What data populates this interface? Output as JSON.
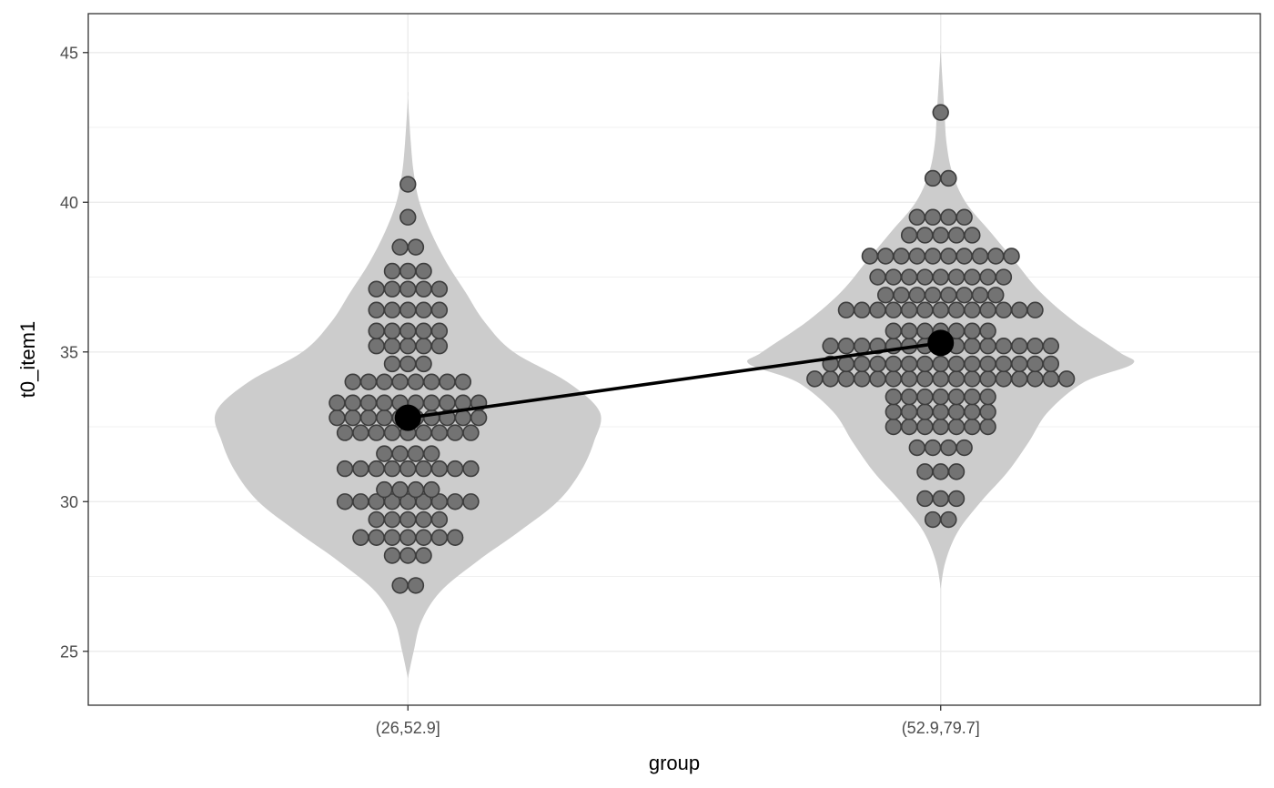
{
  "chart_data": {
    "type": "violin-dotplot",
    "xlabel": "group",
    "ylabel": "t0_item1",
    "categories": [
      "(26,52.9]",
      "(52.9,79.7]"
    ],
    "y_ticks": [
      25,
      30,
      35,
      40,
      45
    ],
    "y_tick_labels": [
      "25",
      "30",
      "35",
      "40",
      "45"
    ],
    "ylim": [
      23.2,
      46.3
    ],
    "grid": true,
    "legend": "none",
    "colors": {
      "violin_fill": "#cccccc",
      "dot_fill": "#737373",
      "dot_stroke": "#3d3d3d",
      "mean_color": "#000000",
      "grid": "#ebebeb",
      "panel_border": "#333333"
    },
    "violins": [
      {
        "category": "(26,52.9]",
        "density": [
          [
            24.1,
            0.0
          ],
          [
            25.0,
            0.03
          ],
          [
            26.0,
            0.07
          ],
          [
            27.0,
            0.17
          ],
          [
            28.0,
            0.36
          ],
          [
            29.0,
            0.58
          ],
          [
            30.0,
            0.78
          ],
          [
            31.0,
            0.9
          ],
          [
            32.0,
            0.97
          ],
          [
            33.0,
            1.0
          ],
          [
            34.0,
            0.83
          ],
          [
            35.0,
            0.55
          ],
          [
            36.0,
            0.4
          ],
          [
            37.0,
            0.3
          ],
          [
            38.0,
            0.2
          ],
          [
            39.0,
            0.12
          ],
          [
            40.0,
            0.06
          ],
          [
            41.0,
            0.03
          ],
          [
            42.0,
            0.015
          ],
          [
            43.5,
            0.0
          ]
        ]
      },
      {
        "category": "(52.9,79.7]",
        "density": [
          [
            27.1,
            0.0
          ],
          [
            28.0,
            0.025
          ],
          [
            29.0,
            0.09
          ],
          [
            30.0,
            0.21
          ],
          [
            31.0,
            0.35
          ],
          [
            32.0,
            0.46
          ],
          [
            33.0,
            0.56
          ],
          [
            34.0,
            0.75
          ],
          [
            34.6,
            1.0
          ],
          [
            35.0,
            0.93
          ],
          [
            36.0,
            0.7
          ],
          [
            37.0,
            0.52
          ],
          [
            38.0,
            0.39
          ],
          [
            39.0,
            0.26
          ],
          [
            40.0,
            0.13
          ],
          [
            41.0,
            0.06
          ],
          [
            42.0,
            0.03
          ],
          [
            43.0,
            0.02
          ],
          [
            44.0,
            0.01
          ],
          [
            45.1,
            0.0
          ]
        ]
      }
    ],
    "dot_rows": [
      {
        "category": "(26,52.9]",
        "rows": [
          {
            "y": 27.2,
            "count": 2
          },
          {
            "y": 28.2,
            "count": 3
          },
          {
            "y": 28.8,
            "count": 7
          },
          {
            "y": 29.4,
            "count": 5
          },
          {
            "y": 30.0,
            "count": 9
          },
          {
            "y": 30.4,
            "count": 4
          },
          {
            "y": 31.1,
            "count": 9
          },
          {
            "y": 31.6,
            "count": 4
          },
          {
            "y": 32.3,
            "count": 9
          },
          {
            "y": 32.8,
            "count": 10
          },
          {
            "y": 33.3,
            "count": 10
          },
          {
            "y": 34.0,
            "count": 8
          },
          {
            "y": 34.6,
            "count": 3
          },
          {
            "y": 35.2,
            "count": 5
          },
          {
            "y": 35.7,
            "count": 5
          },
          {
            "y": 36.4,
            "count": 5
          },
          {
            "y": 37.1,
            "count": 5
          },
          {
            "y": 37.7,
            "count": 3
          },
          {
            "y": 38.5,
            "count": 2
          },
          {
            "y": 39.5,
            "count": 1
          },
          {
            "y": 40.6,
            "count": 1
          }
        ]
      },
      {
        "category": "(52.9,79.7]",
        "rows": [
          {
            "y": 29.4,
            "count": 2
          },
          {
            "y": 30.1,
            "count": 3
          },
          {
            "y": 31.0,
            "count": 3
          },
          {
            "y": 31.8,
            "count": 4
          },
          {
            "y": 32.5,
            "count": 7
          },
          {
            "y": 33.0,
            "count": 7
          },
          {
            "y": 33.5,
            "count": 7
          },
          {
            "y": 34.1,
            "count": 17
          },
          {
            "y": 34.6,
            "count": 15
          },
          {
            "y": 35.2,
            "count": 15
          },
          {
            "y": 35.7,
            "count": 7
          },
          {
            "y": 36.4,
            "count": 13
          },
          {
            "y": 36.9,
            "count": 8
          },
          {
            "y": 37.5,
            "count": 9
          },
          {
            "y": 38.2,
            "count": 10
          },
          {
            "y": 38.9,
            "count": 5
          },
          {
            "y": 39.5,
            "count": 4
          },
          {
            "y": 40.8,
            "count": 2
          },
          {
            "y": 43.0,
            "count": 1
          }
        ]
      }
    ],
    "means": [
      {
        "category": "(26,52.9]",
        "value": 32.8
      },
      {
        "category": "(52.9,79.7]",
        "value": 35.3
      }
    ]
  }
}
